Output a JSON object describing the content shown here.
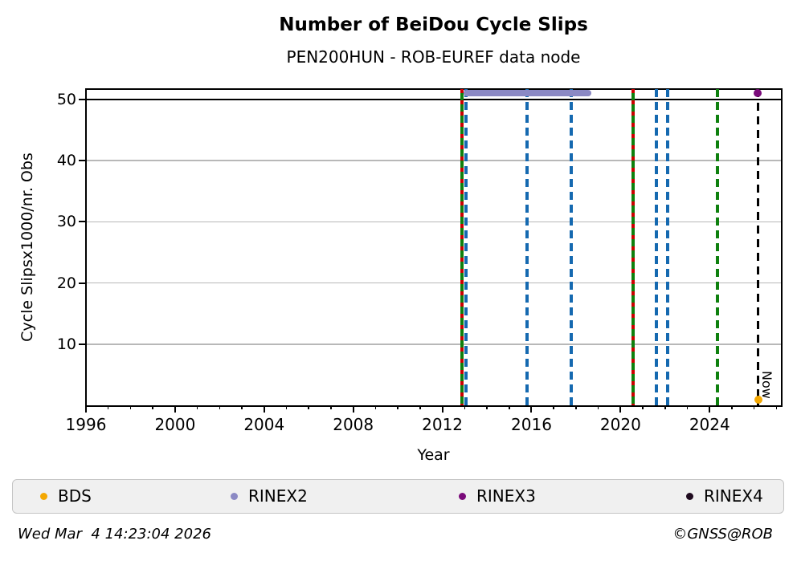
{
  "header": {
    "title": "Number of BeiDou Cycle Slips",
    "subtitle": "PEN200HUN - ROB-EUREF data node"
  },
  "footer": {
    "timestamp": "Wed Mar  4 14:23:04 2026",
    "copyright": "©GNSS@ROB"
  },
  "legend": {
    "items": [
      {
        "label": "BDS",
        "color": "#f4a802"
      },
      {
        "label": "RINEX2",
        "color": "#8b89c4"
      },
      {
        "label": "RINEX3",
        "color": "#7a0b7a"
      },
      {
        "label": "RINEX4",
        "color": "#1f0a1f"
      }
    ]
  },
  "chart_data": {
    "type": "scatter",
    "title": "Number of BeiDou Cycle Slips",
    "subtitle": "PEN200HUN - ROB-EUREF data node",
    "xlabel": "Year",
    "ylabel": "Cycle Slipsx1000/nr. Obs",
    "xlim": [
      1996,
      2027.2
    ],
    "ylim": [
      0,
      51.7
    ],
    "xticks_major": [
      1996,
      2000,
      2004,
      2008,
      2012,
      2016,
      2020,
      2024
    ],
    "xticks_minor_step": 1,
    "yticks": [
      10,
      20,
      30,
      40,
      50
    ],
    "grid": true,
    "gridline_color": "#b8b8b8",
    "cap_line_y": 50,
    "series": [
      {
        "name": "BDS",
        "color": "#f4a802",
        "points": [
          [
            2026.2,
            0.9
          ]
        ]
      },
      {
        "name": "RINEX2",
        "color": "#8b89c4",
        "segment": {
          "x_start": 2012.95,
          "x_end": 2018.7,
          "y": 51
        }
      },
      {
        "name": "RINEX3",
        "color": "#7a0b7a",
        "points": [
          [
            2026.15,
            51
          ]
        ]
      },
      {
        "name": "RINEX4",
        "color": "#1f0a1f",
        "points": []
      }
    ],
    "event_lines": [
      {
        "x": 2012.87,
        "color": "#0e800e",
        "style": "solid"
      },
      {
        "x": 2012.87,
        "color": "#cc0000",
        "style": "dashed-sparse"
      },
      {
        "x": 2013.05,
        "color": "#1569b0",
        "style": "dashed"
      },
      {
        "x": 2015.82,
        "color": "#1569b0",
        "style": "dashed"
      },
      {
        "x": 2017.8,
        "color": "#1569b0",
        "style": "dashed"
      },
      {
        "x": 2020.58,
        "color": "#0e800e",
        "style": "solid"
      },
      {
        "x": 2020.58,
        "color": "#cc0000",
        "style": "dashed-sparse"
      },
      {
        "x": 2021.62,
        "color": "#1569b0",
        "style": "dashed"
      },
      {
        "x": 2022.12,
        "color": "#1569b0",
        "style": "dashed"
      },
      {
        "x": 2024.35,
        "color": "#0e800e",
        "style": "dashed"
      }
    ],
    "now_line": {
      "x": 2026.17,
      "label": "Now",
      "color": "#000000",
      "style": "dashed"
    },
    "legend_position": "bottom"
  }
}
